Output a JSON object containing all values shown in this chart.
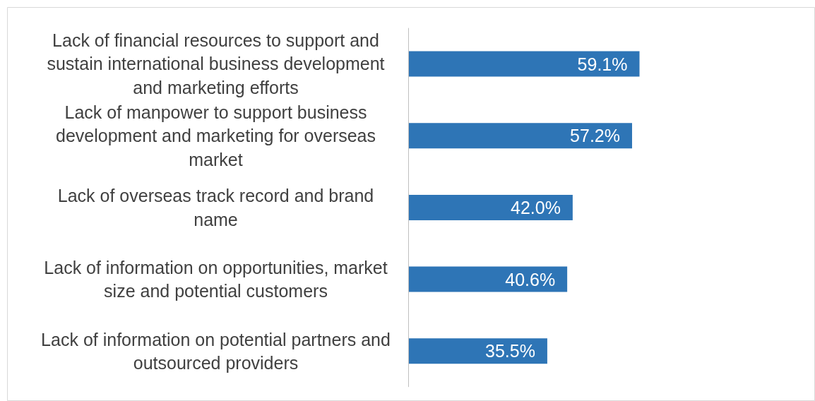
{
  "chart_data": {
    "type": "bar",
    "orientation": "horizontal",
    "categories": [
      "Lack of financial resources to support and sustain international business development and marketing efforts",
      "Lack of manpower to support business development and marketing for overseas market",
      "Lack of overseas track record and brand name",
      "Lack of information on opportunities, market size and potential customers",
      "Lack of information on potential partners and outsourced providers"
    ],
    "values": [
      59.1,
      57.2,
      42.0,
      40.6,
      35.5
    ],
    "value_labels": [
      "59.1%",
      "57.2%",
      "42.0%",
      "40.6%",
      "35.5%"
    ],
    "color": "#2e75b6",
    "grid": false
  }
}
